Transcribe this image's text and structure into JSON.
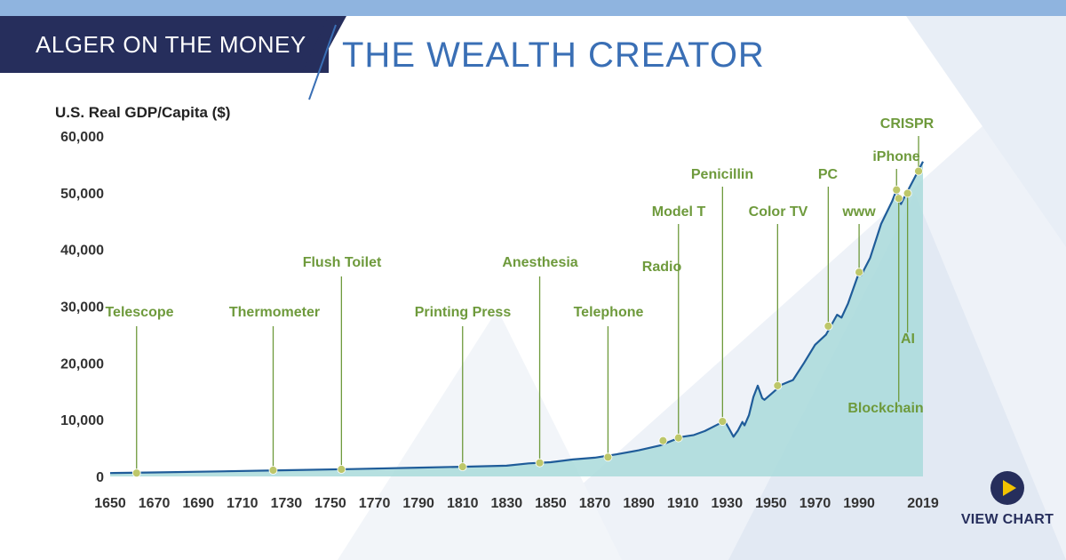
{
  "header": {
    "banner": "ALGER ON THE MONEY",
    "title": "THE WEALTH CREATOR"
  },
  "view_chart": {
    "label": "VIEW CHART"
  },
  "colors": {
    "navy": "#262e5c",
    "title_blue": "#3a6fb5",
    "line": "#1f5c99",
    "area": "#a9dadb",
    "annotation": "#6e9a3c",
    "marker": "#bdc76a",
    "play_accent": "#f2c200"
  },
  "chart_data": {
    "type": "area",
    "ylabel": "U.S. Real GDP/Capita ($)",
    "xlabel": "",
    "xlim": [
      1650,
      2019
    ],
    "ylim": [
      0,
      60000
    ],
    "x_ticks": [
      1650,
      1670,
      1690,
      1710,
      1730,
      1750,
      1770,
      1790,
      1810,
      1830,
      1850,
      1870,
      1890,
      1910,
      1930,
      1950,
      1970,
      1990,
      2019
    ],
    "y_ticks": [
      0,
      10000,
      20000,
      30000,
      40000,
      50000,
      60000
    ],
    "y_tick_labels": [
      "0",
      "10,000",
      "20,000",
      "30,000",
      "40,000",
      "50,000",
      "60,000"
    ],
    "grid": false,
    "series": [
      {
        "x": [
          1650,
          1670,
          1700,
          1730,
          1760,
          1790,
          1810,
          1830,
          1840,
          1850,
          1860,
          1870,
          1880,
          1890,
          1900,
          1905,
          1910,
          1915,
          1920,
          1926,
          1929,
          1931,
          1933,
          1935,
          1937,
          1938,
          1940,
          1942,
          1944,
          1946,
          1947,
          1950,
          1955,
          1960,
          1965,
          1970,
          1975,
          1980,
          1982,
          1985,
          1990,
          1991,
          1995,
          2000,
          2005,
          2007,
          2009,
          2010,
          2015,
          2019
        ],
        "y": [
          600,
          700,
          900,
          1100,
          1300,
          1550,
          1700,
          1900,
          2300,
          2500,
          3000,
          3300,
          3900,
          4600,
          5500,
          6300,
          7000,
          7300,
          8000,
          9200,
          9800,
          8400,
          7000,
          8100,
          9600,
          9000,
          10800,
          14000,
          16000,
          13800,
          13500,
          14500,
          16200,
          17000,
          20000,
          23200,
          25000,
          28500,
          28000,
          30500,
          36000,
          35500,
          38500,
          44500,
          48500,
          50500,
          48000,
          48800,
          52500,
          55500
        ]
      }
    ],
    "annotations": [
      {
        "label": "Telescope",
        "x": 1662,
        "y": 600
      },
      {
        "label": "Thermometer",
        "x": 1724,
        "y": 1100
      },
      {
        "label": "Flush Toilet",
        "x": 1755,
        "y": 1250
      },
      {
        "label": "Printing Press",
        "x": 1810,
        "y": 1700
      },
      {
        "label": "Anesthesia",
        "x": 1845,
        "y": 2400
      },
      {
        "label": "Telephone",
        "x": 1876,
        "y": 3400
      },
      {
        "label": "Radio",
        "x": 1901,
        "y": 6300
      },
      {
        "label": "Model T",
        "x": 1908,
        "y": 6800
      },
      {
        "label": "Penicillin",
        "x": 1928,
        "y": 9700
      },
      {
        "label": "Color TV",
        "x": 1953,
        "y": 16000
      },
      {
        "label": "PC",
        "x": 1976,
        "y": 26500
      },
      {
        "label": "www",
        "x": 1990,
        "y": 36000
      },
      {
        "label": "iPhone",
        "x": 2007,
        "y": 50500
      },
      {
        "label": "Blockchain",
        "x": 2008,
        "y": 49000
      },
      {
        "label": "AI",
        "x": 2012,
        "y": 49900
      },
      {
        "label": "CRISPR",
        "x": 2017,
        "y": 53800
      }
    ]
  }
}
